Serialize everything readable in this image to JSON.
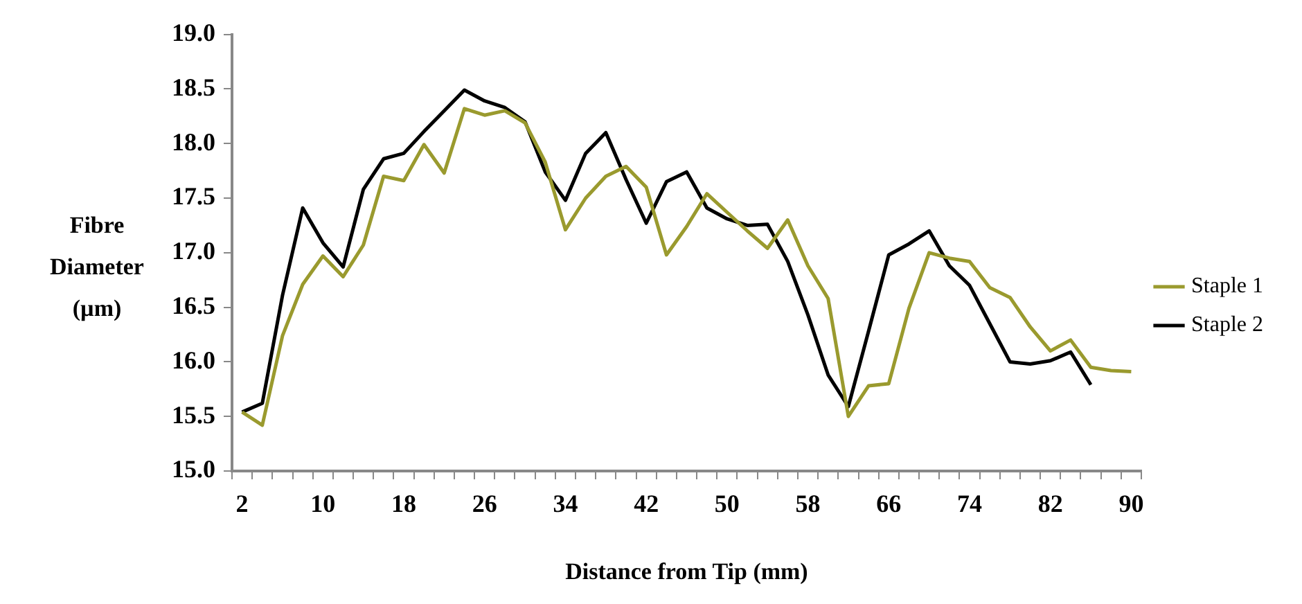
{
  "chart_data": {
    "type": "line",
    "xlabel": "Distance from Tip (mm)",
    "ylabel": "Fibre Diameter (µm)",
    "categories": [
      "2",
      null,
      null,
      null,
      "10",
      null,
      null,
      null,
      "18",
      null,
      null,
      null,
      "26",
      null,
      null,
      null,
      "34",
      null,
      null,
      null,
      "42",
      null,
      null,
      null,
      "50",
      null,
      null,
      null,
      "58",
      null,
      null,
      null,
      "66",
      null,
      null,
      null,
      "74",
      null,
      null,
      null,
      "82",
      null,
      null,
      null,
      "90"
    ],
    "series": [
      {
        "name": "Staple 1",
        "color": "#9a9a2e",
        "values": [
          15.54,
          15.42,
          16.24,
          16.71,
          16.97,
          16.78,
          17.07,
          17.7,
          17.66,
          17.99,
          17.73,
          18.32,
          18.26,
          18.3,
          18.19,
          17.83,
          17.21,
          17.5,
          17.7,
          17.79,
          17.6,
          16.98,
          17.24,
          17.54,
          17.37,
          17.2,
          17.04,
          17.3,
          16.88,
          16.58,
          15.5,
          15.78,
          15.8,
          16.49,
          17.0,
          16.95,
          16.92,
          16.68,
          16.59,
          16.32,
          16.1,
          16.2,
          15.95,
          15.92,
          15.91
        ]
      },
      {
        "name": "Staple 2",
        "color": "#000000",
        "values": [
          15.54,
          15.62,
          16.61,
          17.41,
          17.09,
          16.87,
          17.58,
          17.86,
          17.91,
          18.11,
          18.3,
          18.49,
          18.39,
          18.33,
          18.2,
          17.74,
          17.48,
          17.91,
          18.1,
          17.67,
          17.27,
          17.65,
          17.74,
          17.41,
          17.31,
          17.25,
          17.26,
          16.92,
          16.43,
          15.88,
          15.59,
          16.28,
          16.98,
          17.08,
          17.2,
          16.88,
          16.7,
          16.35,
          16.0,
          15.98,
          16.01,
          16.09,
          15.79,
          null,
          null
        ]
      }
    ],
    "ylim": [
      15,
      19
    ],
    "yticks": [
      {
        "value": 15,
        "label": "15.0"
      },
      {
        "value": 15.5,
        "label": "15.5"
      },
      {
        "value": 16,
        "label": "16.0"
      },
      {
        "value": 16.5,
        "label": "16.5"
      },
      {
        "value": 17,
        "label": "17.0"
      },
      {
        "value": 17.5,
        "label": "17.5"
      },
      {
        "value": 18,
        "label": "18.0"
      },
      {
        "value": 18.5,
        "label": "18.5"
      },
      {
        "value": 19,
        "label": "19.0"
      }
    ],
    "legend": "right",
    "marker": "none",
    "line_style": "solid"
  }
}
